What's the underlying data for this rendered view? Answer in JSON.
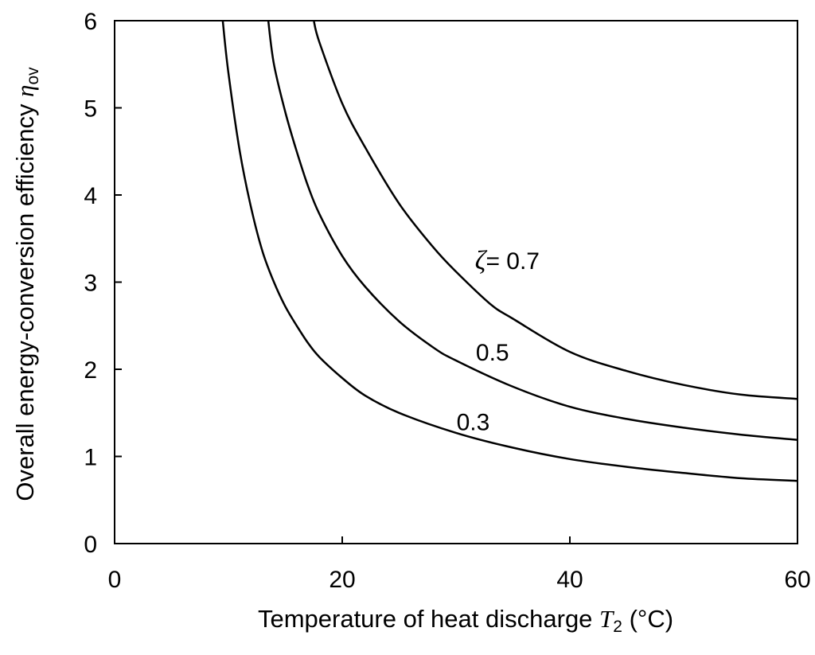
{
  "chart_data": {
    "type": "line",
    "title": "",
    "xlabel": {
      "prefix": "Temperature of heat discharge ",
      "symbol": "T",
      "subscript": "2",
      "unit": " (°C)"
    },
    "ylabel": {
      "prefix": "Overall energy-conversion efficiency ",
      "symbol": "η",
      "subscript": "ov"
    },
    "xlim": [
      0,
      60
    ],
    "ylim": [
      0,
      6
    ],
    "xticks": [
      0,
      20,
      40,
      60
    ],
    "yticks": [
      0,
      1,
      2,
      3,
      4,
      5,
      6
    ],
    "grid": false,
    "series": [
      {
        "name": "0.3",
        "x": [
          9.5,
          10,
          11,
          12,
          13,
          14,
          15,
          16,
          17,
          18,
          20,
          22,
          25,
          30,
          35,
          40,
          45,
          50,
          55,
          60
        ],
        "y": [
          6.0,
          5.4,
          4.5,
          3.85,
          3.35,
          3.0,
          2.72,
          2.5,
          2.3,
          2.14,
          1.9,
          1.7,
          1.5,
          1.27,
          1.1,
          0.97,
          0.88,
          0.81,
          0.75,
          0.72
        ]
      },
      {
        "name": "0.5",
        "x": [
          13.5,
          14,
          15,
          16,
          17,
          18,
          20,
          22,
          25,
          28,
          30,
          35,
          40,
          45,
          50,
          55,
          60
        ],
        "y": [
          6.0,
          5.5,
          4.95,
          4.5,
          4.1,
          3.78,
          3.3,
          2.95,
          2.55,
          2.25,
          2.1,
          1.8,
          1.57,
          1.43,
          1.33,
          1.25,
          1.19
        ]
      },
      {
        "name": "0.7",
        "x": [
          17.5,
          18,
          20,
          22,
          25,
          28,
          30,
          33,
          35,
          40,
          45,
          50,
          55,
          60
        ],
        "y": [
          6.0,
          5.75,
          5.05,
          4.55,
          3.9,
          3.4,
          3.12,
          2.75,
          2.58,
          2.2,
          1.98,
          1.82,
          1.71,
          1.66
        ]
      }
    ],
    "annotations": [
      {
        "series": "0.7",
        "symbol": "ζ",
        "text": "= 0.7",
        "x": 34.5,
        "y": 3.15
      },
      {
        "series": "0.5",
        "symbol": "",
        "text": "0.5",
        "x": 33.2,
        "y": 2.1
      },
      {
        "series": "0.3",
        "symbol": "",
        "text": "0.3",
        "x": 31.5,
        "y": 1.3
      }
    ]
  },
  "colors": {
    "line": "#000000",
    "axis": "#000000",
    "background": "#ffffff"
  }
}
